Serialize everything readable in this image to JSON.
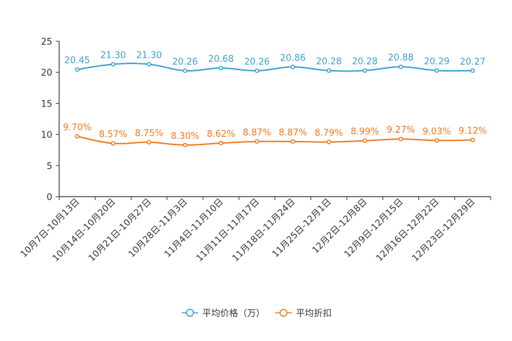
{
  "chart_data": {
    "type": "line",
    "categories": [
      "10月7日-10月13日",
      "10月14日-10月20日",
      "10月21日-10月27日",
      "10月28日-11月3日",
      "11月4日-11月10日",
      "11月11日-11月17日",
      "11月18日-11月24日",
      "11月25日-12月1日",
      "12月2日-12月8日",
      "12月9日-12月15日",
      "12月16日-12月22日",
      "12月23日-12月29日"
    ],
    "series": [
      {
        "name": "平均价格（万）",
        "color": "#3a9fd4",
        "values": [
          20.45,
          21.3,
          21.3,
          20.26,
          20.68,
          20.26,
          20.86,
          20.28,
          20.28,
          20.88,
          20.29,
          20.27
        ],
        "labels": [
          "20.45",
          "21.30",
          "21.30",
          "20.26",
          "20.68",
          "20.26",
          "20.86",
          "20.28",
          "20.28",
          "20.88",
          "20.29",
          "20.27"
        ]
      },
      {
        "name": "平均折扣",
        "color": "#f07a1b",
        "values": [
          9.7,
          8.57,
          8.75,
          8.3,
          8.62,
          8.87,
          8.87,
          8.79,
          8.99,
          9.27,
          9.03,
          9.12
        ],
        "labels": [
          "9.70%",
          "8.57%",
          "8.75%",
          "8.30%",
          "8.62%",
          "8.87%",
          "8.87%",
          "8.79%",
          "8.99%",
          "9.27%",
          "9.03%",
          "9.12%"
        ]
      }
    ],
    "yticks": [
      "0",
      "5",
      "10",
      "15",
      "20",
      "25"
    ],
    "ylim": [
      0,
      25
    ],
    "grid": false,
    "legend": "bottom-center"
  }
}
